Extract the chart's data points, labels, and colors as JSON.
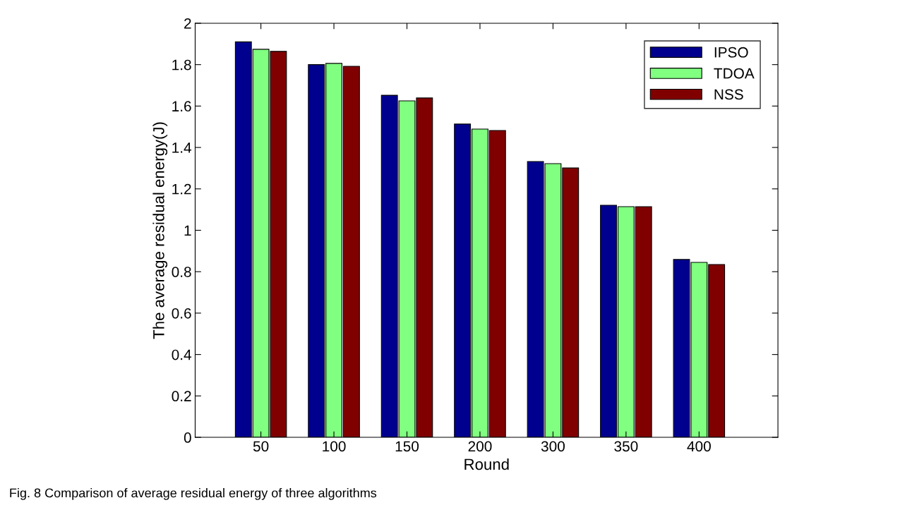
{
  "chart_data": {
    "type": "bar",
    "xlabel": "Round",
    "ylabel": "The average residual energy(J)",
    "categories": [
      "50",
      "100",
      "150",
      "200",
      "300",
      "350",
      "400"
    ],
    "series": [
      {
        "name": "IPSO",
        "color": "#00008f",
        "values": [
          1.91,
          1.8,
          1.652,
          1.513,
          1.332,
          1.121,
          0.859
        ]
      },
      {
        "name": "TDOA",
        "color": "#80ff80",
        "values": [
          1.874,
          1.806,
          1.625,
          1.489,
          1.322,
          1.114,
          0.845
        ]
      },
      {
        "name": "NSS",
        "color": "#800000",
        "values": [
          1.864,
          1.792,
          1.639,
          1.482,
          1.301,
          1.114,
          0.835
        ]
      }
    ],
    "ylim": [
      0,
      2
    ],
    "yticks": [
      0,
      0.2,
      0.4,
      0.6,
      0.8,
      1,
      1.2,
      1.4,
      1.6,
      1.8,
      2
    ],
    "grid": false,
    "legend": "top right",
    "annotations": [
      "Fig. 8 Comparison of average residual energy of three algorithms"
    ]
  }
}
